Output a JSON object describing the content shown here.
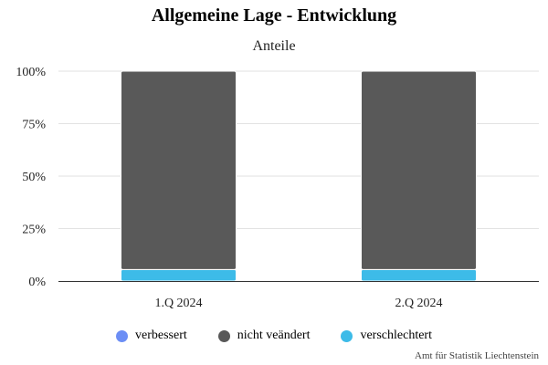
{
  "chart_data": {
    "type": "bar",
    "stacked": true,
    "title": "Allgemeine Lage - Entwicklung",
    "subtitle": "Anteile",
    "categories": [
      "1.Q 2024",
      "2.Q 2024"
    ],
    "series": [
      {
        "name": "verbessert",
        "color": "#6c8ef5",
        "values": [
          0,
          0
        ]
      },
      {
        "name": "nicht veändert",
        "color": "#595959",
        "values": [
          94.5,
          94.5
        ]
      },
      {
        "name": "verschlechtert",
        "color": "#3dbbe8",
        "values": [
          5.5,
          5.5
        ]
      }
    ],
    "stack_order_bottom_to_top": [
      "verschlechtert",
      "nicht veändert",
      "verbessert"
    ],
    "ylim": [
      0,
      100
    ],
    "yticks": [
      "0%",
      "25%",
      "50%",
      "75%",
      "100%"
    ],
    "ytick_values": [
      0,
      25,
      50,
      75,
      100
    ],
    "grid": true,
    "legend_placement": "bottom-center"
  },
  "credit": "Amt für Statistik Liechtenstein"
}
